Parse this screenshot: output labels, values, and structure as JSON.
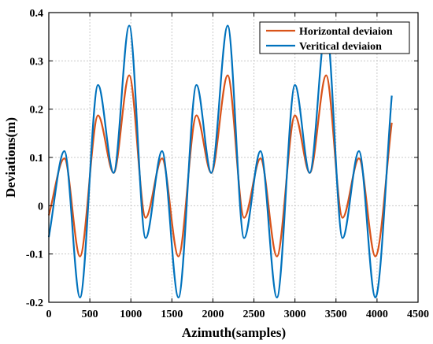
{
  "chart_data": {
    "type": "line",
    "xlabel": "Azimuth(samples)",
    "ylabel": "Deviations(m)",
    "xlim": [
      0,
      4500
    ],
    "ylim": [
      -0.2,
      0.4
    ],
    "xticks": [
      0,
      500,
      1000,
      1500,
      2000,
      2500,
      3000,
      3500,
      4000,
      4500
    ],
    "yticks": [
      -0.2,
      -0.1,
      0,
      0.1,
      0.2,
      0.3,
      0.4
    ],
    "xtick_labels": [
      "0",
      "500",
      "1000",
      "1500",
      "2000",
      "2500",
      "3000",
      "3500",
      "4000",
      "4500"
    ],
    "ytick_labels": [
      "-0.2",
      "-0.1",
      "0",
      "0.1",
      "0.2",
      "0.3",
      "0.4"
    ],
    "grid": true,
    "legend_position": "top-right",
    "series": [
      {
        "name": "Horizontal deviaion",
        "color": "#d95319",
        "x": [
          0,
          190,
          380,
          600,
          790,
          980,
          1180,
          1380,
          1580,
          1800,
          1980,
          2180,
          2380,
          2580,
          2780,
          3000,
          3180,
          3380,
          3580,
          3780,
          3980,
          4180
        ],
        "y": [
          -0.02,
          0.098,
          -0.105,
          0.187,
          0.068,
          0.27,
          -0.025,
          0.098,
          -0.105,
          0.187,
          0.068,
          0.27,
          -0.025,
          0.098,
          -0.105,
          0.187,
          0.068,
          0.27,
          -0.025,
          0.098,
          -0.105,
          0.172
        ]
      },
      {
        "name": "Veritical deviaion",
        "color": "#0072bd",
        "x": [
          0,
          190,
          380,
          600,
          790,
          980,
          1180,
          1380,
          1580,
          1800,
          1980,
          2180,
          2380,
          2580,
          2780,
          3000,
          3180,
          3380,
          3580,
          3780,
          3980,
          4180
        ],
        "y": [
          -0.065,
          0.113,
          -0.19,
          0.25,
          0.068,
          0.373,
          -0.067,
          0.113,
          -0.19,
          0.25,
          0.068,
          0.373,
          -0.067,
          0.113,
          -0.19,
          0.25,
          0.068,
          0.373,
          -0.067,
          0.113,
          -0.19,
          0.228
        ]
      }
    ]
  }
}
